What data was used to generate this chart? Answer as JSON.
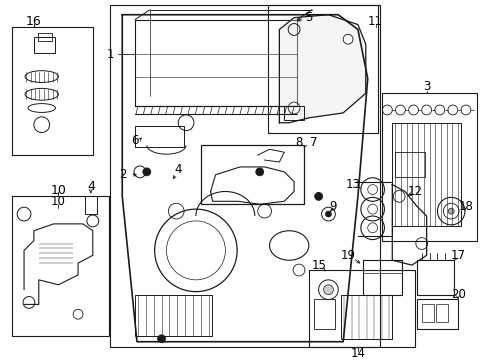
{
  "bg_color": "#ffffff",
  "line_color": "#1a1a1a",
  "text_color": "#000000",
  "fig_width": 4.89,
  "fig_height": 3.6,
  "dpi": 100,
  "label_fontsize": 8.5,
  "small_fontsize": 7.0
}
